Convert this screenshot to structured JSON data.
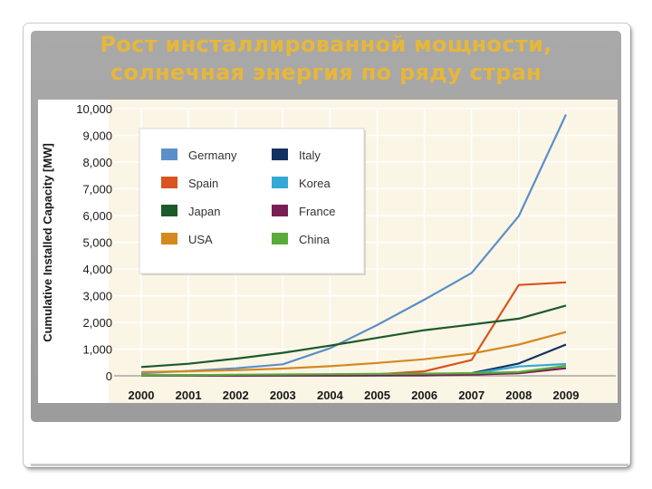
{
  "slide": {
    "title_line1": "Рост инсталлированной мощности,",
    "title_line2": "солнечная энергия по ряду стран"
  },
  "chart_data": {
    "type": "line",
    "ylabel": "Cumulative Installed Capacity [MW]",
    "xlabel": "",
    "x": [
      "2000",
      "2001",
      "2002",
      "2003",
      "2004",
      "2005",
      "2006",
      "2007",
      "2008",
      "2009"
    ],
    "ylim": [
      0,
      10000
    ],
    "yticks": [
      0,
      1000,
      2000,
      3000,
      4000,
      5000,
      6000,
      7000,
      8000,
      9000,
      10000
    ],
    "ytick_labels": [
      "0",
      "1,000",
      "2,000",
      "3,000",
      "4,000",
      "5,000",
      "6,000",
      "7,000",
      "8,000",
      "9,000",
      "10,000"
    ],
    "grid": true,
    "legend_position": "top-left",
    "series": [
      {
        "name": "Germany",
        "color": "#5b8fc8",
        "values": [
          100,
          180,
          280,
          430,
          1030,
          1900,
          2850,
          3850,
          5980,
          9780
        ]
      },
      {
        "name": "Spain",
        "color": "#d9541e",
        "values": [
          10,
          15,
          20,
          25,
          40,
          55,
          170,
          590,
          3400,
          3500
        ]
      },
      {
        "name": "Japan",
        "color": "#1c5a2a",
        "values": [
          330,
          450,
          640,
          860,
          1130,
          1420,
          1710,
          1920,
          2140,
          2630
        ]
      },
      {
        "name": "USA",
        "color": "#d4891f",
        "values": [
          140,
          170,
          210,
          270,
          360,
          480,
          620,
          830,
          1170,
          1640
        ]
      },
      {
        "name": "Italy",
        "color": "#143260",
        "values": [
          20,
          20,
          20,
          25,
          30,
          35,
          45,
          100,
          460,
          1170
        ]
      },
      {
        "name": "Korea",
        "color": "#35a9d6",
        "values": [
          5,
          5,
          5,
          6,
          7,
          10,
          30,
          80,
          350,
          440
        ]
      },
      {
        "name": "France",
        "color": "#7a1e55",
        "values": [
          5,
          5,
          5,
          6,
          7,
          10,
          15,
          45,
          100,
          280
        ]
      },
      {
        "name": "China",
        "color": "#5aab3c",
        "values": [
          15,
          20,
          40,
          50,
          60,
          70,
          80,
          100,
          140,
          370
        ]
      }
    ]
  }
}
